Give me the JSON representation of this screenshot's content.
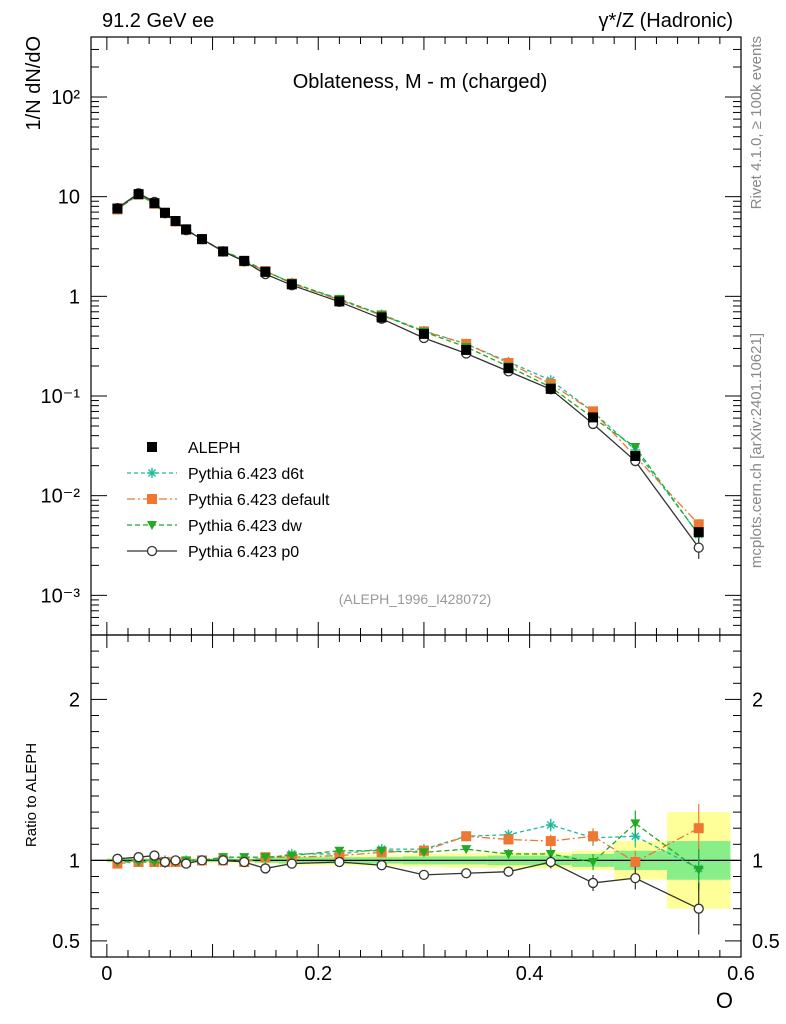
{
  "header": {
    "left": "91.2 GeV ee",
    "right": "γ*/Z (Hadronic)"
  },
  "side_labels": {
    "top": "Rivet 4.1.0, ≥ 100k events",
    "bottom": "mcplots.cern.ch [arXiv:2401.10621]"
  },
  "chart_data": {
    "type": "line",
    "title": "Oblateness, M - m (charged)",
    "analysis_tag": "(ALEPH_1996_I428072)",
    "xlabel": "O",
    "ylabel": "1/N  dN/dO",
    "ratio_ylabel": "Ratio to ALEPH",
    "xlim": [
      -0.015,
      0.6
    ],
    "ylim": [
      0.0004,
      400
    ],
    "yscale": "log",
    "ratio_ylim": [
      0.4,
      2.4
    ],
    "x_ticks": [
      "0",
      "0.2",
      "0.4",
      "0.6"
    ],
    "y_ticks": [
      "10⁻³",
      "10⁻²",
      "10⁻¹",
      "1",
      "10",
      "10²"
    ],
    "ratio_ticks": [
      "0.5",
      "1",
      "2"
    ],
    "x": [
      0.01,
      0.03,
      0.045,
      0.055,
      0.065,
      0.075,
      0.09,
      0.11,
      0.13,
      0.15,
      0.175,
      0.22,
      0.26,
      0.3,
      0.34,
      0.38,
      0.42,
      0.46,
      0.5,
      0.56
    ],
    "data": {
      "name": "ALEPH",
      "values": [
        7.6,
        10.6,
        8.6,
        6.9,
        5.7,
        4.7,
        3.75,
        2.82,
        2.27,
        1.76,
        1.32,
        0.89,
        0.615,
        0.42,
        0.29,
        0.19,
        0.118,
        0.061,
        0.025,
        0.0043
      ],
      "band_inner": [
        0.01,
        0.01,
        0.01,
        0.01,
        0.01,
        0.01,
        0.01,
        0.01,
        0.01,
        0.015,
        0.02,
        0.02,
        0.02,
        0.025,
        0.025,
        0.03,
        0.03,
        0.04,
        0.06,
        0.12
      ],
      "band_outer": [
        0.015,
        0.015,
        0.015,
        0.015,
        0.015,
        0.015,
        0.015,
        0.015,
        0.015,
        0.02,
        0.03,
        0.03,
        0.035,
        0.04,
        0.045,
        0.05,
        0.05,
        0.06,
        0.12,
        0.3
      ]
    },
    "series": [
      {
        "name": "Pythia 6.423 d6t",
        "color": "#1abc9c",
        "marker": "asterisk",
        "dash": "4 3",
        "ratio": [
          0.99,
          1.0,
          1.0,
          1.0,
          0.99,
          1.0,
          1.0,
          1.01,
          1.0,
          1.01,
          1.04,
          1.04,
          1.07,
          1.07,
          1.15,
          1.16,
          1.22,
          1.14,
          1.15,
          0.95
        ],
        "ratio_err": [
          0.01,
          0.01,
          0.01,
          0.01,
          0.01,
          0.01,
          0.01,
          0.01,
          0.01,
          0.01,
          0.01,
          0.01,
          0.02,
          0.02,
          0.02,
          0.03,
          0.04,
          0.05,
          0.07,
          0.12
        ]
      },
      {
        "name": "Pythia 6.423 default",
        "color": "#ee7733",
        "marker": "square",
        "dash": "8 3 2 3",
        "ratio": [
          0.98,
          0.99,
          0.99,
          0.99,
          0.99,
          0.99,
          1.0,
          1.0,
          0.99,
          1.02,
          1.02,
          1.03,
          1.05,
          1.06,
          1.15,
          1.13,
          1.12,
          1.15,
          0.99,
          1.2
        ],
        "ratio_err": [
          0.01,
          0.01,
          0.01,
          0.01,
          0.01,
          0.01,
          0.01,
          0.01,
          0.01,
          0.01,
          0.01,
          0.01,
          0.02,
          0.02,
          0.02,
          0.03,
          0.04,
          0.05,
          0.07,
          0.15
        ]
      },
      {
        "name": "Pythia 6.423 dw",
        "color": "#22aa22",
        "marker": "triangle-down",
        "dash": "5 3",
        "ratio": [
          0.99,
          0.99,
          0.99,
          0.98,
          0.99,
          1.0,
          1.0,
          1.02,
          1.02,
          1.02,
          1.03,
          1.06,
          1.06,
          1.05,
          1.07,
          1.04,
          1.04,
          0.99,
          1.23,
          0.94
        ],
        "ratio_err": [
          0.01,
          0.01,
          0.01,
          0.01,
          0.01,
          0.01,
          0.01,
          0.01,
          0.01,
          0.01,
          0.01,
          0.01,
          0.02,
          0.02,
          0.02,
          0.03,
          0.04,
          0.05,
          0.08,
          0.13
        ]
      },
      {
        "name": "Pythia 6.423 p0",
        "color": "#333333",
        "marker": "open-circle",
        "dash": "",
        "ratio": [
          1.01,
          1.02,
          1.03,
          0.99,
          1.0,
          0.98,
          1.0,
          1.0,
          0.99,
          0.95,
          0.98,
          0.99,
          0.97,
          0.91,
          0.92,
          0.93,
          0.99,
          0.86,
          0.89,
          0.7
        ],
        "ratio_err": [
          0.01,
          0.01,
          0.01,
          0.01,
          0.01,
          0.01,
          0.01,
          0.01,
          0.01,
          0.01,
          0.01,
          0.01,
          0.01,
          0.02,
          0.02,
          0.03,
          0.04,
          0.05,
          0.07,
          0.16
        ]
      }
    ]
  }
}
